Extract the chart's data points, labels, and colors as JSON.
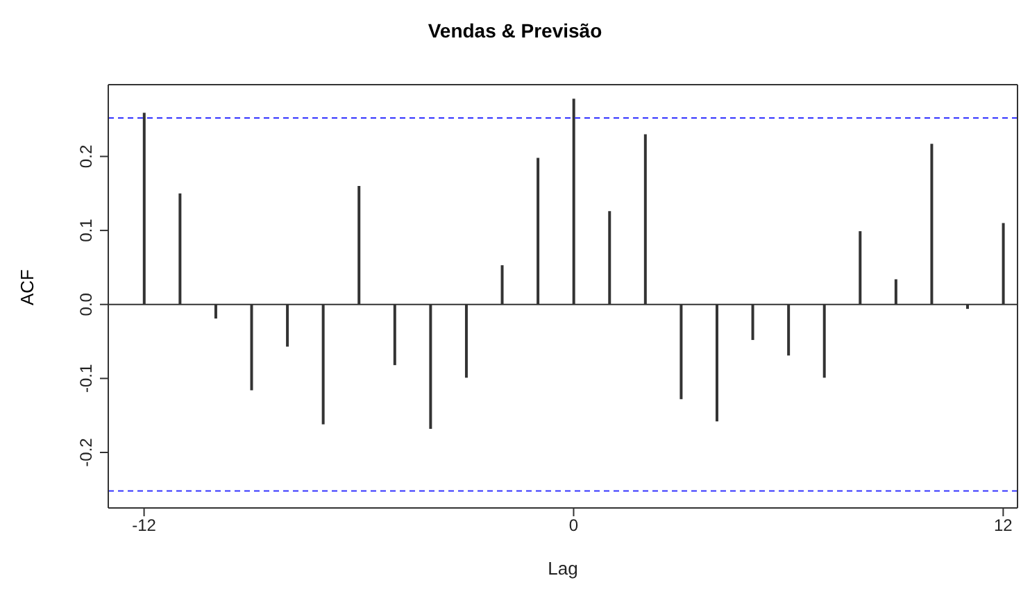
{
  "chart_data": {
    "type": "bar",
    "title": "Vendas & Previsão",
    "xlabel": "Lag",
    "ylabel": "ACF",
    "x": [
      -12,
      -11,
      -10,
      -9,
      -8,
      -7,
      -6,
      -5,
      -4,
      -3,
      -2,
      -1,
      0,
      1,
      2,
      3,
      4,
      5,
      6,
      7,
      8,
      9,
      10,
      11,
      12
    ],
    "values": [
      0.259,
      0.15,
      -0.019,
      -0.116,
      -0.057,
      -0.162,
      0.16,
      -0.082,
      -0.168,
      -0.099,
      0.053,
      0.198,
      0.278,
      0.126,
      0.23,
      -0.128,
      -0.158,
      -0.048,
      -0.069,
      -0.099,
      0.099,
      0.034,
      0.217,
      -0.006,
      0.11
    ],
    "color": "#333333",
    "xlim": [
      -13,
      12.4
    ],
    "xticks": [
      -12,
      0,
      12
    ],
    "ylim": [
      -0.275,
      0.297
    ],
    "yticks": [
      -0.2,
      -0.1,
      {
        "value": 0,
        "label": "0.0"
      },
      0.1,
      0.2
    ],
    "ref_lines": [
      {
        "axis": "y",
        "value": 0.252,
        "color": "#3333ff",
        "line_style": "dashed"
      },
      {
        "axis": "y",
        "value": -0.252,
        "color": "#3333ff",
        "line_style": "dashed"
      },
      {
        "axis": "y",
        "value": 0,
        "color": "#333333",
        "line_style": "solid"
      }
    ]
  }
}
